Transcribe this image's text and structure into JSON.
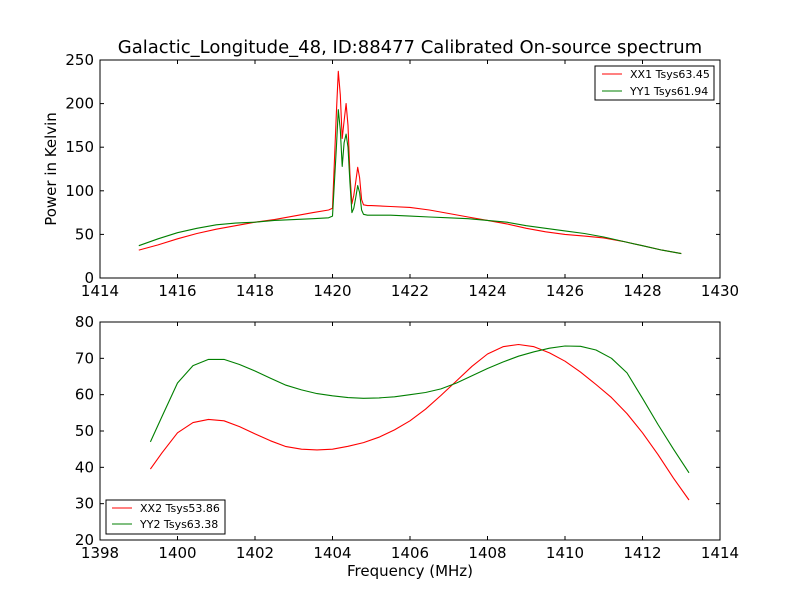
{
  "chart_data": [
    {
      "type": "line",
      "title": "Galactic_Longitude_48, ID:88477 Calibrated On-source spectrum",
      "xlabel": "",
      "ylabel": "Power in Kelvin",
      "xlim": [
        1414,
        1430
      ],
      "ylim": [
        0,
        250
      ],
      "xticks": [
        1414,
        1416,
        1418,
        1420,
        1422,
        1424,
        1426,
        1428,
        1430
      ],
      "yticks": [
        0,
        50,
        100,
        150,
        200,
        250
      ],
      "legend_position": "top-right",
      "series": [
        {
          "name": "XX1 Tsys63.45",
          "color": "#ff0000",
          "x": [
            1415.0,
            1415.5,
            1416.0,
            1416.5,
            1417.0,
            1417.5,
            1418.0,
            1418.5,
            1419.0,
            1419.5,
            1419.9,
            1420.0,
            1420.1,
            1420.15,
            1420.2,
            1420.25,
            1420.3,
            1420.35,
            1420.4,
            1420.45,
            1420.5,
            1420.55,
            1420.6,
            1420.65,
            1420.7,
            1420.75,
            1420.8,
            1420.9,
            1421.0,
            1421.5,
            1422.0,
            1422.5,
            1423.0,
            1423.5,
            1424.0,
            1424.5,
            1425.0,
            1425.5,
            1426.0,
            1426.5,
            1427.0,
            1427.5,
            1428.0,
            1428.5,
            1429.0
          ],
          "y": [
            32,
            38,
            45,
            51,
            56,
            60,
            64,
            67,
            71,
            75,
            78,
            80,
            190,
            237,
            210,
            160,
            180,
            200,
            175,
            120,
            85,
            95,
            110,
            127,
            115,
            90,
            84,
            83,
            83,
            82,
            81,
            78,
            74,
            70,
            66,
            62,
            57,
            53,
            50,
            48,
            46,
            42,
            37,
            32,
            28
          ]
        },
        {
          "name": "YY1 Tsys61.94",
          "color": "#007f00",
          "x": [
            1415.0,
            1415.5,
            1416.0,
            1416.5,
            1417.0,
            1417.5,
            1418.0,
            1418.5,
            1419.0,
            1419.5,
            1419.9,
            1420.0,
            1420.1,
            1420.15,
            1420.2,
            1420.25,
            1420.3,
            1420.35,
            1420.4,
            1420.45,
            1420.5,
            1420.55,
            1420.6,
            1420.65,
            1420.7,
            1420.75,
            1420.8,
            1420.9,
            1421.0,
            1421.5,
            1422.0,
            1422.5,
            1423.0,
            1423.5,
            1424.0,
            1424.5,
            1425.0,
            1425.5,
            1426.0,
            1426.5,
            1427.0,
            1427.5,
            1428.0,
            1428.5,
            1429.0
          ],
          "y": [
            37,
            45,
            52,
            57,
            61,
            63,
            64,
            66,
            67,
            68,
            69,
            71,
            150,
            193,
            170,
            128,
            155,
            165,
            150,
            110,
            75,
            80,
            92,
            106,
            98,
            78,
            73,
            72,
            72,
            72,
            71,
            70,
            69,
            68,
            66,
            64,
            60,
            57,
            54,
            51,
            47,
            42,
            37,
            32,
            28
          ]
        }
      ]
    },
    {
      "type": "line",
      "title": "",
      "xlabel": "Frequency (MHz)",
      "ylabel": "",
      "xlim": [
        1398,
        1414
      ],
      "ylim": [
        20,
        80
      ],
      "xticks": [
        1398,
        1400,
        1402,
        1404,
        1406,
        1408,
        1410,
        1412,
        1414
      ],
      "yticks": [
        20,
        30,
        40,
        50,
        60,
        70,
        80
      ],
      "legend_position": "bottom-left",
      "series": [
        {
          "name": "XX2 Tsys53.86",
          "color": "#ff0000",
          "x": [
            1399.3,
            1399.6,
            1400.0,
            1400.4,
            1400.8,
            1401.2,
            1401.6,
            1402.0,
            1402.4,
            1402.8,
            1403.2,
            1403.6,
            1404.0,
            1404.4,
            1404.8,
            1405.2,
            1405.6,
            1406.0,
            1406.4,
            1406.8,
            1407.2,
            1407.6,
            1408.0,
            1408.4,
            1408.8,
            1409.2,
            1409.6,
            1410.0,
            1410.4,
            1410.8,
            1411.2,
            1411.6,
            1412.0,
            1412.4,
            1412.8,
            1413.2
          ],
          "y": [
            39.5,
            44,
            49.5,
            52.3,
            53.2,
            52.8,
            51.2,
            49.2,
            47.3,
            45.7,
            45.0,
            44.8,
            45.0,
            45.8,
            46.8,
            48.3,
            50.3,
            52.8,
            56,
            59.8,
            63.8,
            67.8,
            71.2,
            73.2,
            73.8,
            73.2,
            71.5,
            69.2,
            66.2,
            62.8,
            59.2,
            54.8,
            49.5,
            43.5,
            37,
            31
          ]
        },
        {
          "name": "YY2 Tsys63.38",
          "color": "#007f00",
          "x": [
            1399.3,
            1399.6,
            1400.0,
            1400.4,
            1400.8,
            1401.2,
            1401.6,
            1402.0,
            1402.4,
            1402.8,
            1403.2,
            1403.6,
            1404.0,
            1404.4,
            1404.8,
            1405.2,
            1405.6,
            1406.0,
            1406.4,
            1406.8,
            1407.2,
            1407.6,
            1408.0,
            1408.4,
            1408.8,
            1409.2,
            1409.6,
            1410.0,
            1410.4,
            1410.8,
            1411.2,
            1411.6,
            1412.0,
            1412.4,
            1412.8,
            1413.2
          ],
          "y": [
            47,
            54,
            63.2,
            68,
            69.7,
            69.7,
            68.3,
            66.5,
            64.5,
            62.6,
            61.3,
            60.3,
            59.7,
            59.2,
            59.0,
            59.1,
            59.4,
            60.0,
            60.6,
            61.6,
            63.2,
            65.2,
            67.2,
            69.0,
            70.6,
            71.8,
            72.8,
            73.4,
            73.3,
            72.3,
            70,
            66,
            59,
            51.8,
            45,
            38.5
          ]
        }
      ]
    }
  ]
}
